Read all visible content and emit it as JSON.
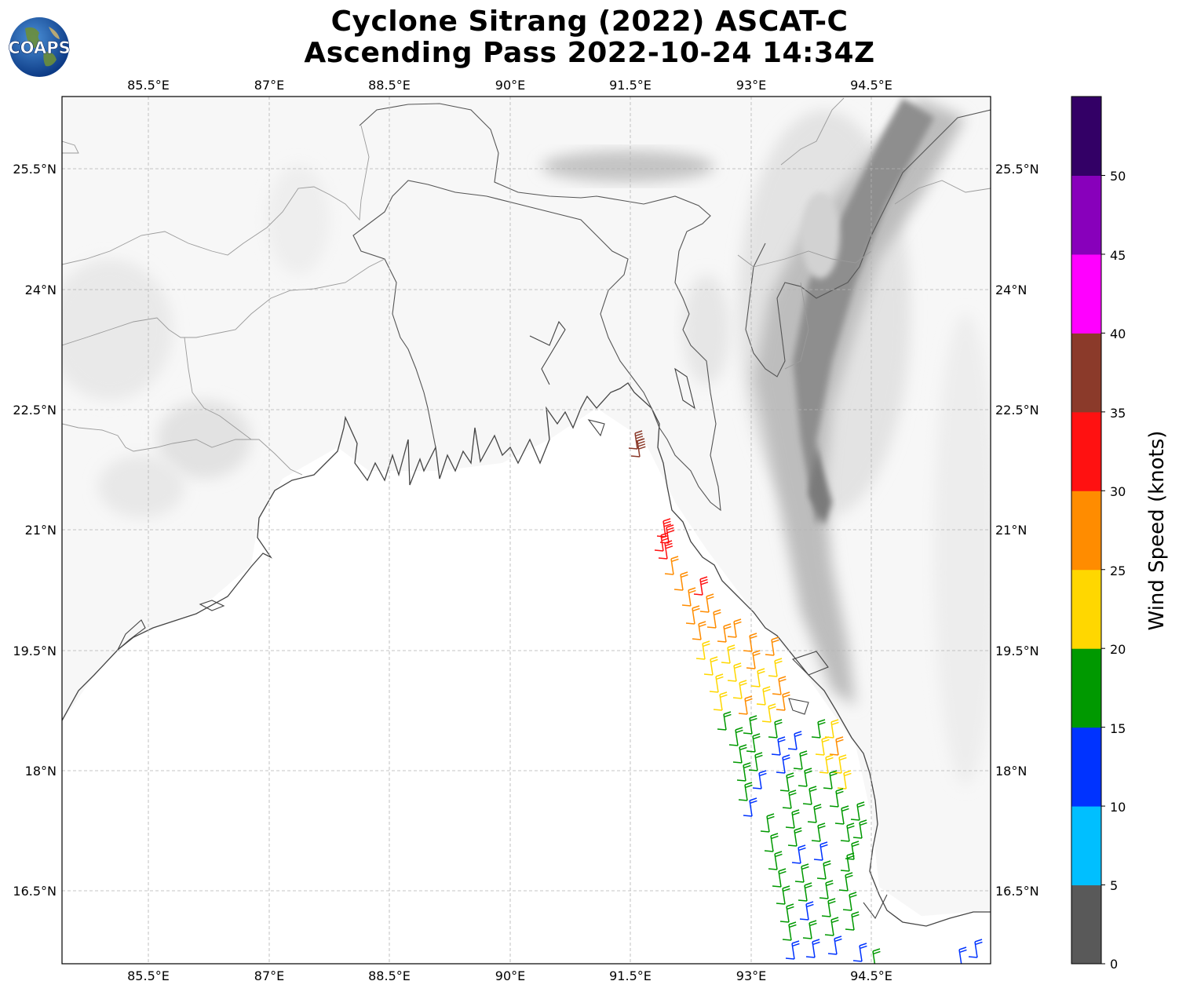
{
  "title_line1": "Cyclone Sitrang (2022) ASCAT-C",
  "title_line2": "Ascending Pass 2022-10-24 14:34Z",
  "logo": {
    "text": "COAPS",
    "icon": "globe-icon"
  },
  "lon_ticks": [
    "85.5°E",
    "87°E",
    "88.5°E",
    "90°E",
    "91.5°E",
    "93°E",
    "94.5°E"
  ],
  "lat_ticks": [
    "25.5°N",
    "24°N",
    "22.5°N",
    "21°N",
    "19.5°N",
    "18°N",
    "16.5°N"
  ],
  "colorbar": {
    "title": "Wind Speed (knots)",
    "tick_labels": [
      "0",
      "5",
      "10",
      "15",
      "20",
      "25",
      "30",
      "35",
      "40",
      "45",
      "50"
    ],
    "bins": [
      {
        "range": "0-5",
        "color": "#595959"
      },
      {
        "range": "5-10",
        "color": "#00bfff"
      },
      {
        "range": "10-15",
        "color": "#0033ff"
      },
      {
        "range": "15-20",
        "color": "#009900"
      },
      {
        "range": "20-25",
        "color": "#ffd700"
      },
      {
        "range": "25-30",
        "color": "#ff8c00"
      },
      {
        "range": "30-35",
        "color": "#ff1111"
      },
      {
        "range": "35-40",
        "color": "#8b3a2a"
      },
      {
        "range": "40-45",
        "color": "#ff00ff"
      },
      {
        "range": "45-50",
        "color": "#8800bb"
      },
      {
        "range": "50+",
        "color": "#330066"
      }
    ]
  },
  "map": {
    "lon_range": [
      84.4,
      96.0
    ],
    "lat_range": [
      15.7,
      26.6
    ],
    "coastline_color": "#444444",
    "border_color": "#888888",
    "terrain_colors": [
      "#f6f6f6",
      "#e6e6e6",
      "#cfcfcf",
      "#a8a8a8",
      "#808080"
    ]
  }
}
